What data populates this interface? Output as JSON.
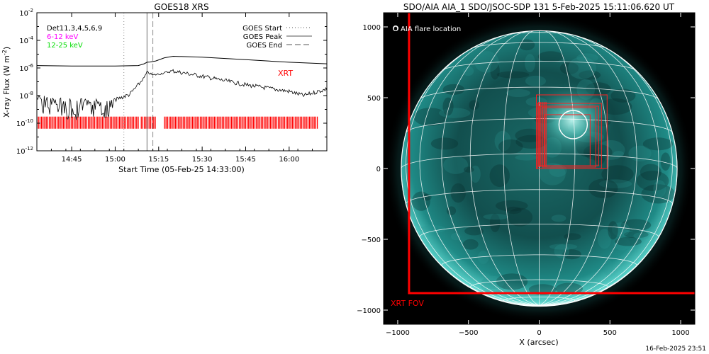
{
  "chart_data": [
    {
      "type": "line",
      "title": "GOES18 XRS",
      "xlabel": "Start Time (05-Feb-25 14:33:00)",
      "ylabel": "X-ray Flux (W m^-2)",
      "ylabel_main": "X-ray Flux (W m",
      "ylabel_sup": "-2",
      "ylabel_close": ")",
      "ylog": true,
      "ylim": [
        "1e-12",
        "1e-2"
      ],
      "xlim": [
        "14:33",
        "16:13"
      ],
      "x_ticks": [
        "14:45",
        "15:00",
        "15:15",
        "15:30",
        "15:45",
        "16:00"
      ],
      "y_ticks": [
        {
          "base": "10",
          "exp": "-2"
        },
        {
          "base": "10",
          "exp": "-4"
        },
        {
          "base": "10",
          "exp": "-6"
        },
        {
          "base": "10",
          "exp": "-8"
        },
        {
          "base": "10",
          "exp": "-10"
        },
        {
          "base": "10",
          "exp": "-12"
        }
      ],
      "legend_left": [
        {
          "text": "Det11,3,4,5,6,9",
          "color": "#000000"
        },
        {
          "text": "6-12 keV",
          "color": "#ff00ff"
        },
        {
          "text": "12-25 keV",
          "color": "#00dd00"
        }
      ],
      "legend_right": [
        {
          "text": "GOES Start",
          "style": "dotted"
        },
        {
          "text": "GOES Peak",
          "style": "solid"
        },
        {
          "text": "GOES End",
          "style": "dashed"
        }
      ],
      "annotation": {
        "text": "XRT",
        "color": "#ff0000"
      },
      "markers": {
        "goes_start": "15:03",
        "goes_peak": "15:11",
        "goes_end": "15:13"
      },
      "series": [
        {
          "color": "#000000",
          "x": [
            "14:33",
            "14:45",
            "15:00",
            "15:08",
            "15:10",
            "15:11",
            "15:12",
            "15:14",
            "15:17",
            "15:20",
            "15:30",
            "15:45",
            "16:00",
            "16:13"
          ],
          "y": [
            "1.5e-6",
            "1.4e-6",
            "1.4e-6",
            "1.5e-6",
            "2.0e-6",
            "2.6e-6",
            "2.7e-6",
            "3.2e-6",
            "5.5e-6",
            "7.0e-6",
            "6.0e-6",
            "4.0e-6",
            "2.6e-6",
            "2.0e-6"
          ]
        },
        {
          "color": "#000000",
          "x": [
            "14:33",
            "14:40",
            "14:45",
            "14:50",
            "14:55",
            "15:00",
            "15:05",
            "15:08",
            "15:10",
            "15:11",
            "15:12",
            "15:13",
            "15:16",
            "15:20",
            "15:30",
            "15:45",
            "16:00",
            "16:05",
            "16:13"
          ],
          "y": [
            "6e-9",
            "4e-9",
            "3e-9",
            "3e-9",
            "3e-9",
            "5e-9",
            "1.2e-8",
            "6e-8",
            "2e-7",
            "5e-7",
            "4e-7",
            "3e-7",
            "4e-7",
            "6e-7",
            "2.5e-7",
            "6e-8",
            "2e-8",
            "1e-8",
            "3e-8"
          ]
        }
      ],
      "xrt_bar_ranges": [
        [
          "14:33",
          "15:08"
        ],
        [
          "15:09",
          "15:14"
        ],
        [
          "15:17",
          "16:10"
        ]
      ]
    },
    {
      "type": "image",
      "title": "SDO/AIA AIA_1 SDO/JSOC-SDP 131  5-Feb-2025 15:11:06.620 UT",
      "xlabel": "X (arcsec)",
      "xlim": [
        -1100,
        1100
      ],
      "ylim": [
        -1100,
        1100
      ],
      "x_ticks": [
        "-1000",
        "-500",
        "0",
        "500",
        "1000"
      ],
      "y_ticks": [
        "1000",
        "500",
        "0",
        "-500",
        "-1000"
      ],
      "legend": "O AIA flare location",
      "fov_label": "XRT FOV",
      "fov_label_color": "#ff0000",
      "solar_radius_arcsec": 975,
      "flare_location": {
        "x": 240,
        "y": 310
      },
      "xrt_fov": {
        "x0": -920,
        "y0": -880,
        "x1": 1100,
        "y1": 1100
      },
      "xrt_boxes": [
        {
          "x0": -20,
          "y0": 0,
          "x1": 480,
          "y1": 520
        },
        {
          "x0": 0,
          "y0": 20,
          "x1": 420,
          "y1": 440
        },
        {
          "x0": 20,
          "y0": 10,
          "x1": 400,
          "y1": 430
        },
        {
          "x0": -10,
          "y0": 0,
          "x1": 440,
          "y1": 460
        },
        {
          "x0": 40,
          "y0": 20,
          "x1": 360,
          "y1": 380
        }
      ]
    }
  ],
  "footer": {
    "timestamp": "16-Feb-2025 23:51"
  }
}
